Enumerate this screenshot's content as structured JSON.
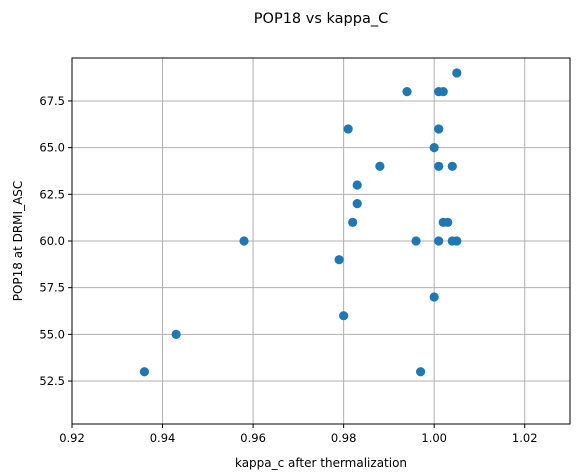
{
  "chart_data": {
    "type": "scatter",
    "title": "POP18 vs kappa_C",
    "xlabel": "kappa_c after thermalization",
    "ylabel": "POP18 at DRMI_ASC",
    "xlim": [
      0.92,
      1.03
    ],
    "ylim": [
      50.2,
      69.8
    ],
    "xticks": [
      0.92,
      0.94,
      0.96,
      0.98,
      1.0,
      1.02
    ],
    "xtick_labels": [
      "0.92",
      "0.94",
      "0.96",
      "0.98",
      "1.00",
      "1.02"
    ],
    "yticks": [
      52.5,
      55.0,
      57.5,
      60.0,
      62.5,
      65.0,
      67.5
    ],
    "ytick_labels": [
      "52.5",
      "55.0",
      "57.5",
      "60.0",
      "62.5",
      "65.0",
      "67.5"
    ],
    "grid": true,
    "marker_color": "#1f77b4",
    "points": [
      {
        "x": 0.936,
        "y": 53
      },
      {
        "x": 0.943,
        "y": 55
      },
      {
        "x": 0.958,
        "y": 60
      },
      {
        "x": 0.979,
        "y": 59
      },
      {
        "x": 0.98,
        "y": 56
      },
      {
        "x": 0.981,
        "y": 66
      },
      {
        "x": 0.982,
        "y": 61
      },
      {
        "x": 0.983,
        "y": 62
      },
      {
        "x": 0.983,
        "y": 63
      },
      {
        "x": 0.988,
        "y": 64
      },
      {
        "x": 0.994,
        "y": 68
      },
      {
        "x": 0.996,
        "y": 60
      },
      {
        "x": 0.997,
        "y": 53
      },
      {
        "x": 1.0,
        "y": 57
      },
      {
        "x": 1.0,
        "y": 65
      },
      {
        "x": 1.001,
        "y": 68
      },
      {
        "x": 1.001,
        "y": 66
      },
      {
        "x": 1.001,
        "y": 64
      },
      {
        "x": 1.001,
        "y": 60
      },
      {
        "x": 1.002,
        "y": 68
      },
      {
        "x": 1.002,
        "y": 61
      },
      {
        "x": 1.003,
        "y": 61
      },
      {
        "x": 1.004,
        "y": 64
      },
      {
        "x": 1.004,
        "y": 60
      },
      {
        "x": 1.005,
        "y": 69
      },
      {
        "x": 1.005,
        "y": 60
      }
    ]
  }
}
